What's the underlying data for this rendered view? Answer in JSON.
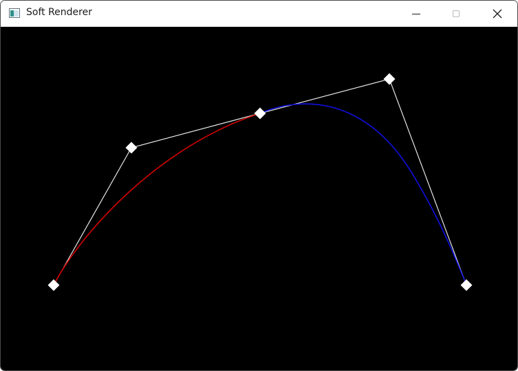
{
  "window": {
    "title": "Soft Renderer",
    "app_icon": "window-app-icon",
    "controls": {
      "minimize_icon": "minimize-icon",
      "maximize_icon": "maximize-icon",
      "close_icon": "close-icon"
    }
  },
  "scene": {
    "background": "#000000",
    "control_polygon_color": "#e6e6e6",
    "control_point_color": "#ffffff",
    "curve_left_color": "#d40000",
    "curve_right_color": "#1010e0"
  }
}
